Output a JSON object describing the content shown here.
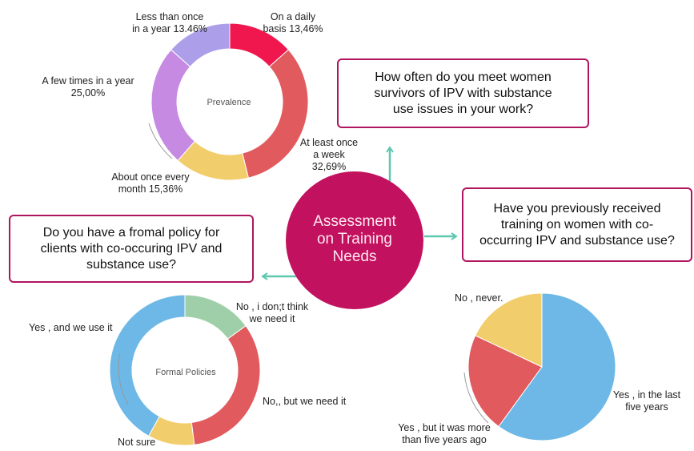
{
  "center": {
    "line1": "Assessment",
    "line2": "on Training",
    "line3": "Needs",
    "color": "#c2115e"
  },
  "questions": {
    "q1_line1": "How often do you meet women",
    "q1_line2": "survivors of IPV with substance",
    "q1_line3": "use issues in your work?",
    "q2_line1": "Have you previously received",
    "q2_line2": "training on women with co-",
    "q2_line3": "occurring IPV and substance use?",
    "q3_line1": "Do you have a fromal policy for",
    "q3_line2": "clients with co-occuring IPV and",
    "q3_line3": "substance use?"
  },
  "chart_data": [
    {
      "type": "pie",
      "donut": true,
      "center_label": "Prevalence",
      "slices": [
        {
          "label_line1": "On a daily",
          "label_line2": "basis 13,46%",
          "value": 13.46,
          "color": "#f0174f"
        },
        {
          "label_line1": "At least once",
          "label_line2": "a week",
          "label_line3": "32,69%",
          "value": 32.69,
          "color": "#e05a5e"
        },
        {
          "label_line1": "About once every",
          "label_line2": "month 15,36%",
          "value": 15.36,
          "color": "#f2cd6b"
        },
        {
          "label_line1": "A few times  in a year",
          "label_line2": "25,00%",
          "value": 25.0,
          "color": "#c68ae3"
        },
        {
          "label_line1": "Less than once",
          "label_line2": "in a year 13.46%",
          "value": 13.46,
          "color": "#ad9eea"
        }
      ]
    },
    {
      "type": "pie",
      "donut": true,
      "center_label": "Formal Policies",
      "slices": [
        {
          "label_line1": "No , i don;t think",
          "label_line2": "we need it",
          "value": 15,
          "color": "#9fcfa8"
        },
        {
          "label_line1": "No,, but we need it",
          "value": 33,
          "color": "#e05a5e"
        },
        {
          "label_line1": "Not  sure",
          "value": 10,
          "color": "#f2cd6b"
        },
        {
          "label_line1": "Yes , and we use it",
          "value": 42,
          "color": "#6db8e6"
        }
      ]
    },
    {
      "type": "pie",
      "donut": false,
      "slices": [
        {
          "label_line1": "Yes , in the last",
          "label_line2": "five years",
          "value": 60,
          "color": "#6db8e6"
        },
        {
          "label_line1": "Yes , but it was more",
          "label_line2": "than five years ago",
          "value": 22,
          "color": "#e05a5e"
        },
        {
          "label_line1": "No , never.",
          "value": 18,
          "color": "#f2cd6b"
        }
      ]
    }
  ]
}
